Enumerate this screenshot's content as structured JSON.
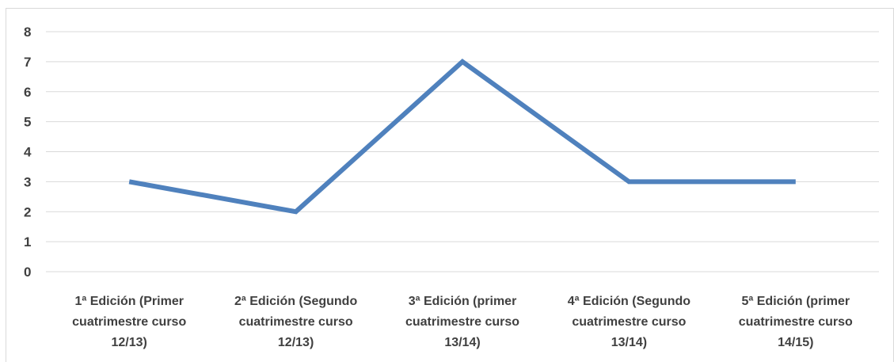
{
  "chart_data": {
    "type": "line",
    "title": "",
    "xlabel": "",
    "ylabel": "",
    "categories": [
      [
        "1ª Edición (Primer",
        "cuatrimestre curso",
        "12/13)"
      ],
      [
        "2ª Edición (Segundo",
        "cuatrimestre curso",
        "12/13)"
      ],
      [
        "3ª Edición (primer",
        "cuatrimestre curso",
        "13/14)"
      ],
      [
        "4ª Edición (Segundo",
        "cuatrimestre curso",
        "13/14)"
      ],
      [
        "5ª Edición (primer",
        "cuatrimestre curso",
        "14/15)"
      ]
    ],
    "series": [
      {
        "values": [
          3,
          2,
          7,
          3,
          3
        ],
        "color": "#4f81bd"
      }
    ],
    "ylim": [
      0,
      8
    ],
    "yticks": [
      "0",
      "1",
      "2",
      "3",
      "4",
      "5",
      "6",
      "7",
      "8"
    ],
    "grid": true,
    "legend": "none"
  }
}
